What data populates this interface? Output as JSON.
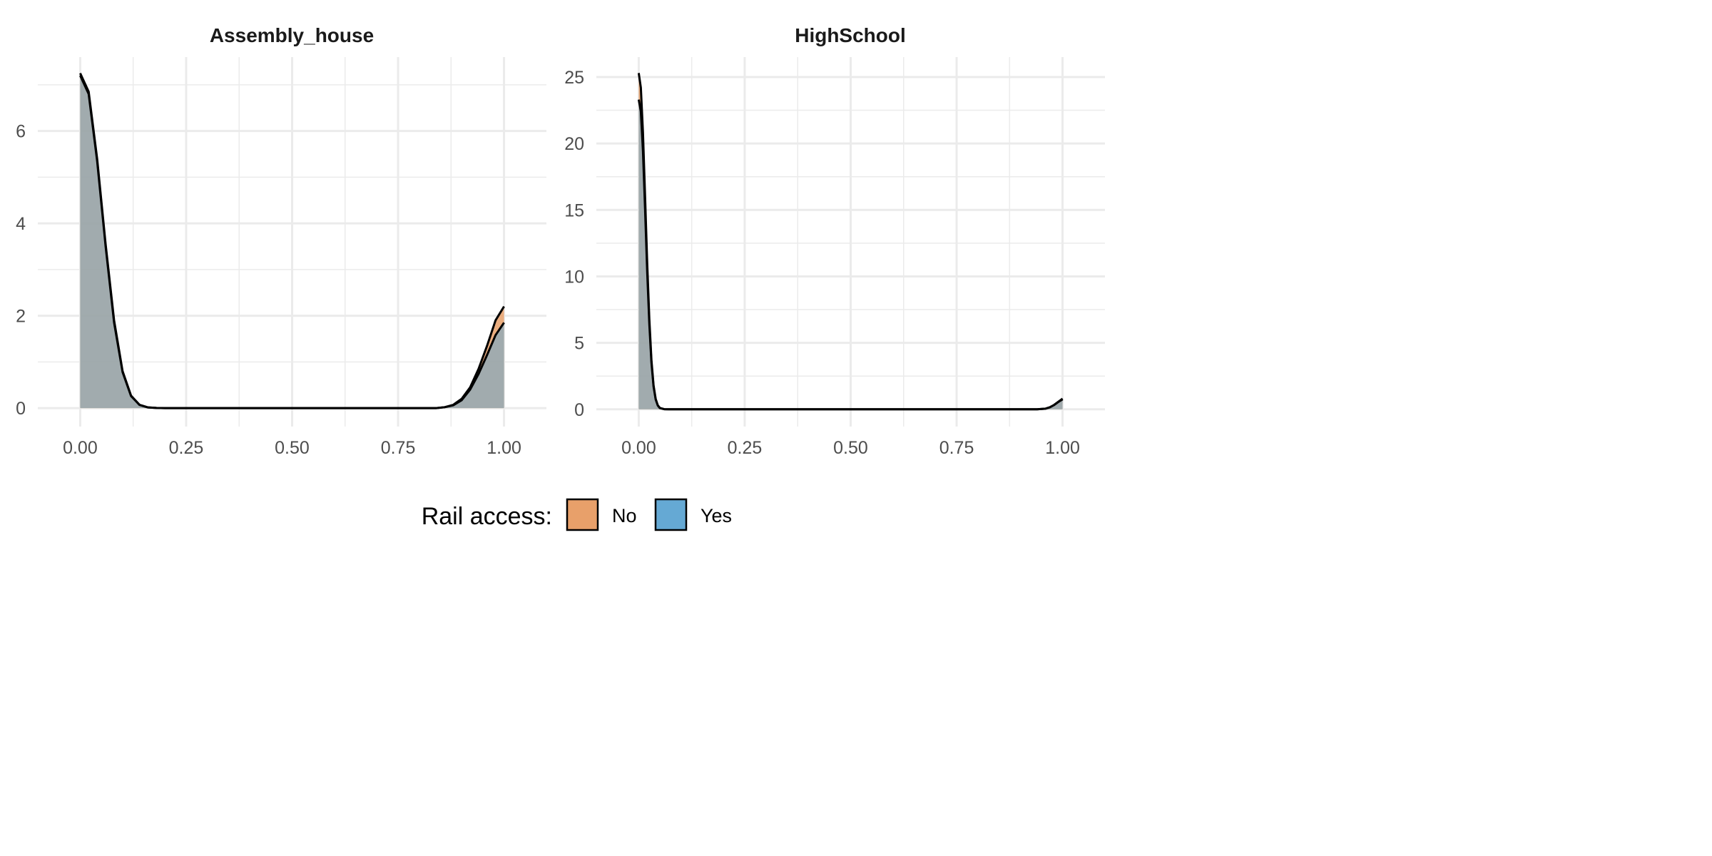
{
  "chart_data": [
    {
      "type": "area",
      "title": "Assembly_house",
      "xlim": [
        -0.1,
        1.1
      ],
      "ylim": [
        -0.4,
        7.6
      ],
      "x_ticks": [
        0,
        0.25,
        0.5,
        0.75,
        1
      ],
      "x_tick_labels": [
        "0.00",
        "0.25",
        "0.50",
        "0.75",
        "1.00"
      ],
      "y_ticks": [
        0,
        2,
        4,
        6
      ],
      "y_tick_labels": [
        "0",
        "2",
        "4",
        "6"
      ],
      "grid": true,
      "series": [
        {
          "name": "No",
          "x": [
            0,
            0.02,
            0.04,
            0.06,
            0.08,
            0.1,
            0.12,
            0.14,
            0.16,
            0.18,
            0.2,
            0.84,
            0.86,
            0.88,
            0.9,
            0.92,
            0.94,
            0.96,
            0.98,
            1.0
          ],
          "y": [
            7.25,
            6.85,
            5.4,
            3.55,
            1.9,
            0.8,
            0.27,
            0.07,
            0.015,
            0.003,
            0,
            0,
            0.02,
            0.07,
            0.2,
            0.45,
            0.85,
            1.35,
            1.9,
            2.2
          ]
        },
        {
          "name": "Yes",
          "x": [
            0,
            0.02,
            0.04,
            0.06,
            0.08,
            0.1,
            0.12,
            0.14,
            0.16,
            0.18,
            0.2,
            0.84,
            0.86,
            0.88,
            0.9,
            0.92,
            0.94,
            0.96,
            0.98,
            1.0
          ],
          "y": [
            7.2,
            6.8,
            5.35,
            3.5,
            1.85,
            0.78,
            0.26,
            0.07,
            0.015,
            0.003,
            0,
            0,
            0.02,
            0.06,
            0.17,
            0.4,
            0.74,
            1.15,
            1.58,
            1.85
          ]
        }
      ]
    },
    {
      "type": "area",
      "title": "HighSchool",
      "xlim": [
        -0.1,
        1.1
      ],
      "ylim": [
        -1.3,
        26.5
      ],
      "x_ticks": [
        0,
        0.25,
        0.5,
        0.75,
        1
      ],
      "x_tick_labels": [
        "0.00",
        "0.25",
        "0.50",
        "0.75",
        "1.00"
      ],
      "y_ticks": [
        0,
        5,
        10,
        15,
        20,
        25
      ],
      "y_tick_labels": [
        "0",
        "5",
        "10",
        "15",
        "20",
        "25"
      ],
      "grid": true,
      "series": [
        {
          "name": "No",
          "x": [
            0,
            0.005,
            0.01,
            0.015,
            0.02,
            0.025,
            0.03,
            0.035,
            0.04,
            0.045,
            0.05,
            0.06,
            0.07,
            0.94,
            0.96,
            0.97,
            0.98,
            0.99,
            1.0
          ],
          "y": [
            25.3,
            24.2,
            20.8,
            16.0,
            11.0,
            6.8,
            3.7,
            1.8,
            0.78,
            0.3,
            0.1,
            0.01,
            0,
            0,
            0.05,
            0.15,
            0.32,
            0.55,
            0.75
          ]
        },
        {
          "name": "Yes",
          "x": [
            0,
            0.005,
            0.01,
            0.015,
            0.02,
            0.025,
            0.03,
            0.035,
            0.04,
            0.045,
            0.05,
            0.06,
            0.07,
            0.94,
            0.96,
            0.97,
            0.98,
            0.99,
            1.0
          ],
          "y": [
            23.3,
            22.4,
            19.4,
            15.0,
            10.3,
            6.4,
            3.5,
            1.7,
            0.74,
            0.28,
            0.09,
            0.01,
            0,
            0,
            0.05,
            0.15,
            0.33,
            0.57,
            0.8
          ]
        }
      ]
    }
  ],
  "legend": {
    "title": "Rail access:",
    "position": "bottom",
    "items": [
      {
        "label": "No",
        "color": "#E8A06A"
      },
      {
        "label": "Yes",
        "color": "#65A9D4"
      }
    ]
  },
  "colors": {
    "No": "#E8A06A",
    "Yes": "#65A9D4",
    "outline": "#000000",
    "grid": "#EBEBEB"
  }
}
